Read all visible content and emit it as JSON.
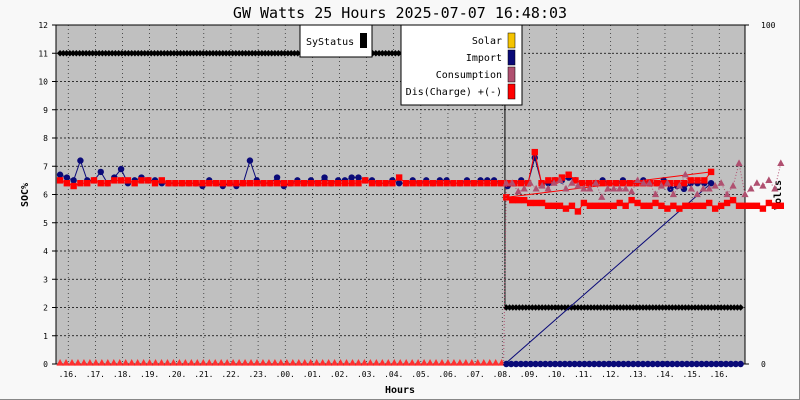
{
  "chart_data": {
    "type": "line",
    "title": "GW Watts 25 Hours 2025-07-07 16:48:03",
    "xlabel": "Hours",
    "ylabel_left": "SOC%",
    "ylabel_right": "Volts",
    "y_left_ticks": [
      "0",
      "1",
      "2",
      "3",
      "4",
      "5",
      "6",
      "7",
      "8",
      "9",
      "10",
      "11",
      "12"
    ],
    "y_right_ticks": [
      "0",
      "100"
    ],
    "ylim_left": [
      0,
      12
    ],
    "ylim_right": [
      0,
      100
    ],
    "grid": true,
    "x_ticks": [
      "16",
      "17",
      "18",
      "19",
      "20",
      "21",
      "22",
      "23",
      "00",
      "01",
      "02",
      "03",
      "04",
      "05",
      "06",
      "07",
      "08",
      "09",
      "10",
      "11",
      "12",
      "13",
      "14",
      "15",
      "16"
    ],
    "legend": {
      "placement": "top",
      "status": {
        "name": "SyStatus",
        "color": "#000000"
      },
      "entries": [
        {
          "name": "Solar",
          "color": "#f5c400"
        },
        {
          "name": "Import",
          "color": "#0a0a78"
        },
        {
          "name": "Consumption",
          "color": "#b05070"
        },
        {
          "name": "Dis(Charge) +(-)",
          "color": "#ff0000"
        }
      ]
    },
    "series": [
      {
        "name": "SyStatus",
        "color": "#000000",
        "style": "diamond",
        "segments": [
          {
            "x_range": [
              15.7,
              32.05
            ],
            "y": 11
          },
          {
            "x_range": [
              32.15,
              40.8
            ],
            "y": 2
          }
        ]
      },
      {
        "name": "Import",
        "color": "#0a0a78",
        "style": "circle",
        "x_start": 15.7,
        "x_step": 0.25,
        "values": [
          6.7,
          6.6,
          6.5,
          7.2,
          6.5,
          6.5,
          6.8,
          6.4,
          6.6,
          6.9,
          6.4,
          6.5,
          6.6,
          6.5,
          6.5,
          6.4,
          6.4,
          6.4,
          6.4,
          6.4,
          6.4,
          6.3,
          6.5,
          6.4,
          6.3,
          6.4,
          6.3,
          6.4,
          7.2,
          6.5,
          6.4,
          6.4,
          6.6,
          6.3,
          6.4,
          6.5,
          6.4,
          6.5,
          6.4,
          6.6,
          6.4,
          6.5,
          6.5,
          6.6,
          6.6,
          6.5,
          6.5,
          6.4,
          6.4,
          6.5,
          6.4,
          6.4,
          6.5,
          6.4,
          6.5,
          6.4,
          6.5,
          6.5,
          6.4,
          6.4,
          6.5,
          6.4,
          6.5,
          6.5,
          6.5,
          6.4,
          6.3,
          6.4,
          6.5,
          6.4,
          7.3,
          6.4,
          6.4,
          6.5,
          6.5,
          6.6,
          6.5,
          6.4,
          6.4,
          6.4,
          6.5,
          6.4,
          6.4,
          6.5,
          6.4,
          6.4,
          6.5,
          6.4,
          6.4,
          6.5,
          6.2,
          6.3,
          6.2,
          6.4,
          6.4,
          6.4,
          6.4
        ],
        "drop_x": 32.1,
        "after_value": 0,
        "after_x_range": [
          32.15,
          40.8
        ]
      },
      {
        "name": "Dis(Charge) +(-)",
        "color": "#ff0000",
        "style": "square",
        "x_start": 15.7,
        "x_step": 0.25,
        "values": [
          6.5,
          6.4,
          6.3,
          6.4,
          6.4,
          6.5,
          6.4,
          6.4,
          6.5,
          6.5,
          6.5,
          6.4,
          6.5,
          6.5,
          6.4,
          6.5,
          6.4,
          6.4,
          6.4,
          6.4,
          6.4,
          6.4,
          6.4,
          6.4,
          6.4,
          6.4,
          6.4,
          6.4,
          6.4,
          6.4,
          6.4,
          6.4,
          6.4,
          6.4,
          6.4,
          6.4,
          6.4,
          6.4,
          6.4,
          6.4,
          6.4,
          6.4,
          6.4,
          6.4,
          6.4,
          6.5,
          6.4,
          6.4,
          6.4,
          6.4,
          6.6,
          6.4,
          6.4,
          6.4,
          6.4,
          6.4,
          6.4,
          6.4,
          6.4,
          6.4,
          6.4,
          6.4,
          6.4,
          6.4,
          6.4,
          6.4,
          6.4,
          6.4,
          6.4,
          6.4,
          7.5,
          6.4,
          6.5,
          6.5,
          6.6,
          6.7,
          6.5,
          6.4,
          6.4,
          6.4,
          6.4,
          6.4,
          6.4,
          6.4,
          6.4,
          6.4,
          6.4,
          6.4,
          6.4,
          6.4,
          6.4,
          6.4,
          6.4,
          6.5,
          6.5,
          6.5,
          6.8
        ],
        "after": {
          "x_start": 32.15,
          "x_step": 0.22,
          "values": [
            5.9,
            5.8,
            5.8,
            5.8,
            5.7,
            5.7,
            5.7,
            5.6,
            5.6,
            5.6,
            5.5,
            5.6,
            5.4,
            5.7,
            5.6,
            5.6,
            5.6,
            5.6,
            5.6,
            5.7,
            5.6,
            5.8,
            5.7,
            5.6,
            5.6,
            5.7,
            5.6,
            5.5,
            5.6,
            5.5,
            5.6,
            5.6,
            5.6,
            5.6,
            5.7,
            5.5,
            5.6,
            5.7,
            5.8,
            5.6,
            5.6,
            5.6,
            5.6,
            5.5,
            5.7,
            5.6,
            5.6
          ]
        }
      },
      {
        "name": "Consumption",
        "color": "#b05070",
        "style": "triangle",
        "x_start": 32.15,
        "x_step": 0.22,
        "values": [
          6.4,
          6.4,
          6.1,
          6.2,
          6.4,
          6.2,
          6.3,
          6.2,
          6.4,
          6.5,
          6.2,
          6.4,
          6.3,
          6.2,
          6.2,
          6.4,
          5.9,
          6.2,
          6.2,
          6.2,
          6.2,
          6.1,
          6.5,
          6.4,
          6.4,
          6.0,
          6.3,
          6.4,
          6.0,
          6.3,
          6.7,
          6.2,
          6.0,
          6.2,
          6.2,
          6.3,
          6.4,
          6.0,
          6.3,
          7.1,
          6.0,
          6.2,
          6.4,
          6.3,
          6.5,
          6.2,
          7.1
        ],
        "before_value": 0,
        "before_x_range": [
          15.7,
          32.05
        ]
      },
      {
        "name": "Solar",
        "color": "#f5c400",
        "style": "none",
        "values": []
      }
    ]
  }
}
